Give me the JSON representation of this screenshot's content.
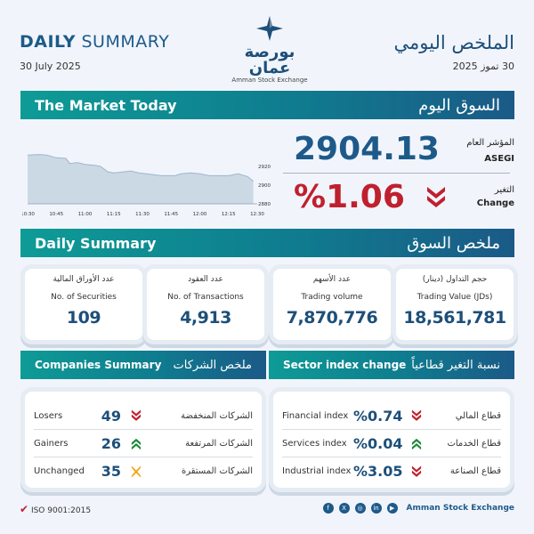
{
  "header": {
    "title_bold": "DAILY",
    "title_rest": "SUMMARY",
    "date": "30 July 2025",
    "title_ar": "الملخص اليومي",
    "date_ar": "30 تموز 2025"
  },
  "logo": {
    "ar": "بورصة عمان",
    "en": "Amman Stock Exchange"
  },
  "market_today": {
    "title": "The Market Today",
    "title_ar": "السوق اليوم",
    "index_label_ar": "المؤشر العام",
    "index_label": "ASEGI",
    "index_value": "2904.13",
    "change_label_ar": "التغير",
    "change_label": "Change",
    "change_value": "%1.06",
    "change_direction": "down",
    "down_color": "#c0202e"
  },
  "chart_data": {
    "type": "area",
    "x_ticks": [
      "10:30",
      "10:45",
      "11:00",
      "11:15",
      "11:30",
      "11:45",
      "12:00",
      "12:15",
      "12:30"
    ],
    "y_ticks": [
      "2920",
      "2900",
      "2880"
    ],
    "ylim": [
      2880,
      2935
    ],
    "x": [
      "10:30",
      "10:36",
      "10:40",
      "10:45",
      "10:50",
      "10:52",
      "10:56",
      "11:00",
      "11:05",
      "11:08",
      "11:12",
      "11:15",
      "11:20",
      "11:24",
      "11:28",
      "11:32",
      "11:40",
      "11:47",
      "11:50",
      "11:55",
      "12:00",
      "12:05",
      "12:10",
      "12:15",
      "12:20",
      "12:25",
      "12:28"
    ],
    "values": [
      2932,
      2932.5,
      2932,
      2929,
      2928.5,
      2923,
      2924,
      2922,
      2921,
      2920,
      2914,
      2913,
      2914,
      2915,
      2913,
      2912,
      2910,
      2910,
      2912,
      2913,
      2912,
      2910,
      2910,
      2910,
      2912,
      2909,
      2904
    ]
  },
  "daily_summary": {
    "title": "Daily Summary",
    "title_ar": "ملخص السوق",
    "cards": [
      {
        "ar": "عدد الأوراق المالية",
        "en": "No. of Securities",
        "value": "109"
      },
      {
        "ar": "عدد العقود",
        "en": "No. of Transactions",
        "value": "4,913"
      },
      {
        "ar": "عدد الأسهم",
        "en": "Trading volume",
        "value": "7,870,776"
      },
      {
        "ar": "حجم التداول (دينار)",
        "en": "Trading Value (JDs)",
        "value": "18,561,781"
      }
    ]
  },
  "companies": {
    "title": "Companies Summary",
    "title_ar": "ملخص الشركات",
    "rows": [
      {
        "en": "Losers",
        "value": "49",
        "ar": "الشركات المنخفضة",
        "dir": "down",
        "color": "#c0202e"
      },
      {
        "en": "Gainers",
        "value": "26",
        "ar": "الشركات المرتفعة",
        "dir": "up",
        "color": "#1f8a3c"
      },
      {
        "en": "Unchanged",
        "value": "35",
        "ar": "الشركات المستقرة",
        "dir": "flat",
        "color": "#f0a81c"
      }
    ]
  },
  "sectors": {
    "title": "Sector index change",
    "title_ar": "نسبة التغير قطاعياً",
    "rows": [
      {
        "en": "Financial index",
        "value": "%0.74",
        "ar": "قطاع المالي",
        "dir": "down",
        "color": "#c0202e"
      },
      {
        "en": "Services index",
        "value": "%0.04",
        "ar": "قطاع الخدمات",
        "dir": "up",
        "color": "#1f8a3c"
      },
      {
        "en": "Industrial index",
        "value": "%3.05",
        "ar": "قطاع الصناعة",
        "dir": "down",
        "color": "#c0202e"
      }
    ]
  },
  "footer": {
    "iso": "ISO 9001:2015",
    "org": "Amman Stock Exchange",
    "social": [
      "facebook",
      "x",
      "instagram",
      "linkedin",
      "youtube"
    ]
  }
}
